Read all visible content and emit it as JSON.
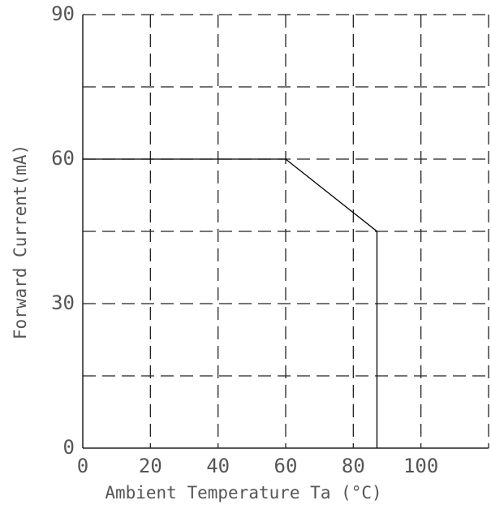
{
  "chart_data": {
    "type": "line",
    "x_label": "Ambient Temperature Ta (°C)",
    "y_label": "Forward Current(mA)",
    "xlim": [
      0,
      120
    ],
    "ylim": [
      0,
      90
    ],
    "xticks": [
      0,
      20,
      40,
      60,
      80,
      100
    ],
    "yticks": [
      0,
      30,
      60,
      90
    ],
    "xgrid": [
      20,
      40,
      60,
      80,
      100,
      120
    ],
    "ygrid": [
      15,
      30,
      45,
      60,
      75,
      90
    ],
    "grid": true,
    "series": [
      {
        "color": "#000000",
        "x": [
          0,
          60,
          87,
          87
        ],
        "values": [
          60,
          60,
          45,
          0
        ]
      }
    ]
  }
}
